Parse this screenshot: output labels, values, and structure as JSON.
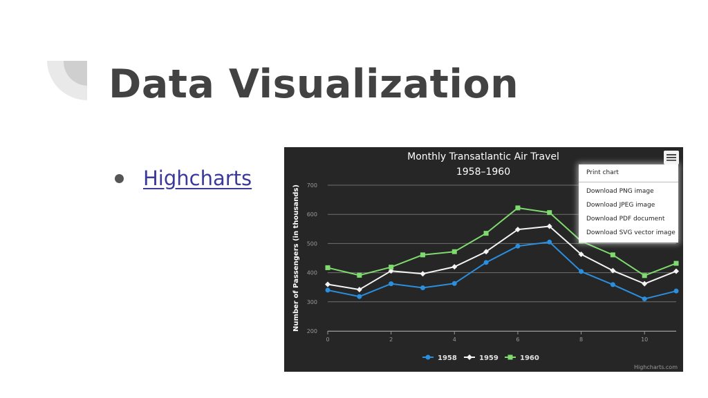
{
  "slide": {
    "title": "Data Visualization",
    "bullets": [
      {
        "label": "Highcharts"
      }
    ]
  },
  "chart_data": {
    "type": "line",
    "title": "Monthly Transatlantic Air Travel",
    "subtitle": "1958–1960",
    "xlabel": "",
    "ylabel": "Number of Passengers (in thousands)",
    "x": [
      0,
      1,
      2,
      3,
      4,
      5,
      6,
      7,
      8,
      9,
      10,
      11
    ],
    "xticks": [
      0,
      2,
      4,
      6,
      8,
      10
    ],
    "xlim": [
      0,
      11
    ],
    "yticks": [
      200,
      300,
      400,
      500,
      600,
      700
    ],
    "ylim": [
      200,
      700
    ],
    "grid": true,
    "legend_position": "bottom",
    "credits": "Highcharts.com",
    "series": [
      {
        "name": "1958",
        "color": "#2b8fdf",
        "marker": "circle",
        "values": [
          340,
          318,
          362,
          348,
          363,
          435,
          491,
          505,
          404,
          359,
          310,
          337
        ]
      },
      {
        "name": "1959",
        "color": "#f5f5f5",
        "marker": "diamond",
        "values": [
          360,
          342,
          406,
          396,
          420,
          472,
          548,
          559,
          463,
          407,
          362,
          405
        ]
      },
      {
        "name": "1960",
        "color": "#7fdb6f",
        "marker": "square",
        "values": [
          417,
          391,
          419,
          461,
          472,
          535,
          622,
          606,
          508,
          461,
          390,
          432
        ]
      }
    ],
    "export_menu": {
      "items": [
        "Print chart",
        "Download PNG image",
        "Download JPEG image",
        "Download PDF document",
        "Download SVG vector image"
      ]
    }
  }
}
